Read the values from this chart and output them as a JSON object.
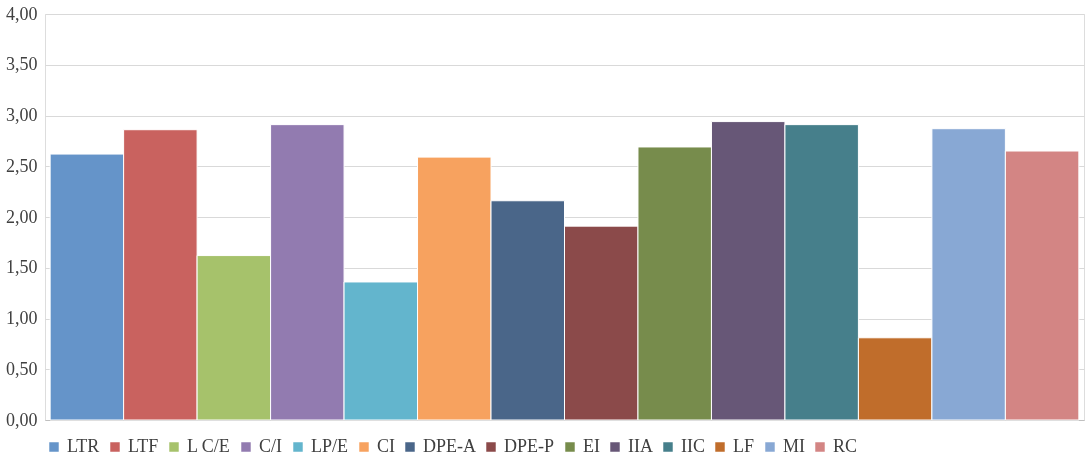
{
  "chart_data": {
    "type": "bar",
    "categories": [
      null
    ],
    "series": [
      {
        "name": "LTR",
        "color": "#6594c9",
        "values": [
          2.62
        ]
      },
      {
        "name": "LTF",
        "color": "#c9625f",
        "values": [
          2.86
        ]
      },
      {
        "name": "L C/E",
        "color": "#a6c26b",
        "values": [
          1.62
        ]
      },
      {
        "name": "C/I",
        "color": "#927bb0",
        "values": [
          2.91
        ]
      },
      {
        "name": "LP/E",
        "color": "#63b5cd",
        "values": [
          1.36
        ]
      },
      {
        "name": "CI",
        "color": "#f7a25f",
        "values": [
          2.59
        ]
      },
      {
        "name": "DPE-A",
        "color": "#4a6689",
        "values": [
          2.16
        ]
      },
      {
        "name": "DPE-P",
        "color": "#8b4a4a",
        "values": [
          1.91
        ]
      },
      {
        "name": "EI",
        "color": "#778c4c",
        "values": [
          2.69
        ]
      },
      {
        "name": "IIA",
        "color": "#675777",
        "values": [
          2.94
        ]
      },
      {
        "name": "IIC",
        "color": "#467f8b",
        "values": [
          2.91
        ]
      },
      {
        "name": "LF",
        "color": "#c06d2b",
        "values": [
          0.81
        ]
      },
      {
        "name": "MI",
        "color": "#88a8d4",
        "values": [
          2.87
        ]
      },
      {
        "name": "RC",
        "color": "#d38584",
        "values": [
          2.65
        ]
      }
    ],
    "ylim": [
      0,
      4
    ],
    "yticks": [
      {
        "value": 0,
        "label": "0,00"
      },
      {
        "value": 0.5,
        "label": "0,50"
      },
      {
        "value": 1,
        "label": "1,00"
      },
      {
        "value": 1.5,
        "label": "1,50"
      },
      {
        "value": 2,
        "label": "2,00"
      },
      {
        "value": 2.5,
        "label": "2,50"
      },
      {
        "value": 3,
        "label": "3,00"
      },
      {
        "value": 3.5,
        "label": "3,50"
      },
      {
        "value": 4,
        "label": "4,00"
      }
    ],
    "grid": "y",
    "legend": "bottom",
    "tick_labels": "y"
  }
}
